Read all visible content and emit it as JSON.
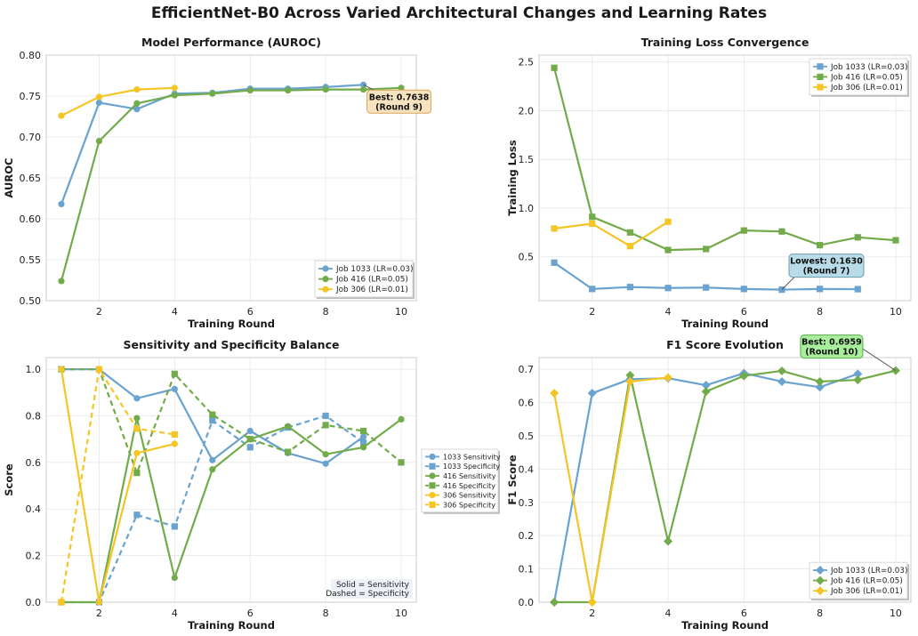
{
  "suptitle": "EfficientNet-B0 Across Varied Architectural Changes and Learning Rates",
  "colors": {
    "job1033": "#6aa2d0",
    "job416": "#72ab4a",
    "job306": "#f5c526"
  },
  "chart_data": [
    {
      "id": "auroc",
      "type": "line",
      "title": "Model Performance (AUROC)",
      "xlabel": "Training Round",
      "ylabel": "AUROC",
      "xlim": [
        0.6,
        10.4
      ],
      "ylim": [
        0.5,
        0.8
      ],
      "xticks": [
        "2",
        "4",
        "6",
        "8",
        "10"
      ],
      "xtick_values": [
        2,
        4,
        6,
        8,
        10
      ],
      "yticks": [
        "0.50",
        "0.55",
        "0.60",
        "0.65",
        "0.70",
        "0.75",
        "0.80"
      ],
      "ytick_values": [
        0.5,
        0.55,
        0.6,
        0.65,
        0.7,
        0.75,
        0.8
      ],
      "legend_position": "lower-right",
      "series": [
        {
          "name": "Job 1033 (LR=0.03)",
          "color_key": "job1033",
          "marker": "circle",
          "dashed": false,
          "x": [
            1,
            2,
            3,
            4,
            5,
            6,
            7,
            8,
            9
          ],
          "y": [
            0.618,
            0.742,
            0.734,
            0.753,
            0.754,
            0.759,
            0.759,
            0.761,
            0.7638
          ]
        },
        {
          "name": "Job 416 (LR=0.05)",
          "color_key": "job416",
          "marker": "circle",
          "dashed": false,
          "x": [
            1,
            2,
            3,
            4,
            5,
            6,
            7,
            8,
            9,
            10
          ],
          "y": [
            0.524,
            0.695,
            0.741,
            0.751,
            0.753,
            0.757,
            0.757,
            0.758,
            0.758,
            0.76
          ]
        },
        {
          "name": "Job 306 (LR=0.01)",
          "color_key": "job306",
          "marker": "circle",
          "dashed": false,
          "x": [
            1,
            2,
            3,
            4
          ],
          "y": [
            0.726,
            0.749,
            0.758,
            0.76
          ]
        }
      ],
      "annotation": {
        "line1": "Best: 0.7638",
        "line2": "(Round 9)",
        "point": [
          9,
          0.7638
        ],
        "box_color": "#f7e2c0",
        "box_border": "#d9a55a"
      }
    },
    {
      "id": "loss",
      "type": "line",
      "title": "Training Loss Convergence",
      "xlabel": "Training Round",
      "ylabel": "Training Loss",
      "xlim": [
        0.6,
        10.4
      ],
      "ylim": [
        0.05,
        2.57
      ],
      "xticks": [
        "2",
        "4",
        "6",
        "8",
        "10"
      ],
      "xtick_values": [
        2,
        4,
        6,
        8,
        10
      ],
      "yticks": [
        "0.5",
        "1.0",
        "1.5",
        "2.0",
        "2.5"
      ],
      "ytick_values": [
        0.5,
        1.0,
        1.5,
        2.0,
        2.5
      ],
      "legend_position": "top-right",
      "series": [
        {
          "name": "Job 1033 (LR=0.03)",
          "color_key": "job1033",
          "marker": "square",
          "dashed": false,
          "x": [
            1,
            2,
            3,
            4,
            5,
            6,
            7,
            8,
            9
          ],
          "y": [
            0.44,
            0.17,
            0.19,
            0.18,
            0.185,
            0.17,
            0.163,
            0.17,
            0.168
          ]
        },
        {
          "name": "Job 416 (LR=0.05)",
          "color_key": "job416",
          "marker": "square",
          "dashed": false,
          "x": [
            1,
            2,
            3,
            4,
            5,
            6,
            7,
            8,
            9,
            10
          ],
          "y": [
            2.44,
            0.91,
            0.75,
            0.57,
            0.58,
            0.77,
            0.76,
            0.62,
            0.7,
            0.67
          ]
        },
        {
          "name": "Job 306 (LR=0.01)",
          "color_key": "job306",
          "marker": "square",
          "dashed": false,
          "x": [
            1,
            2,
            3,
            4
          ],
          "y": [
            0.79,
            0.84,
            0.61,
            0.86
          ]
        }
      ],
      "annotation": {
        "line1": "Lowest: 0.1630",
        "line2": "(Round 7)",
        "point": [
          7,
          0.163
        ],
        "box_color": "#b9dce8",
        "box_border": "#6a9cb0"
      }
    },
    {
      "id": "sensspec",
      "type": "line",
      "title": "Sensitivity and Specificity Balance",
      "xlabel": "Training Round",
      "ylabel": "Score",
      "xlim": [
        0.6,
        10.4
      ],
      "ylim": [
        0.0,
        1.05
      ],
      "xticks": [
        "2",
        "4",
        "6",
        "8",
        "10"
      ],
      "xtick_values": [
        2,
        4,
        6,
        8,
        10
      ],
      "yticks": [
        "0.0",
        "0.2",
        "0.4",
        "0.6",
        "0.8",
        "1.0"
      ],
      "ytick_values": [
        0,
        0.2,
        0.4,
        0.6,
        0.8,
        1.0
      ],
      "legend_position": "outside-right",
      "series": [
        {
          "name": "1033 Sensitivity",
          "color_key": "job1033",
          "marker": "circle",
          "dashed": false,
          "x": [
            1,
            2,
            3,
            4,
            5,
            6,
            7,
            8,
            9
          ],
          "y": [
            1.0,
            1.0,
            0.875,
            0.915,
            0.61,
            0.735,
            0.64,
            0.595,
            0.71
          ]
        },
        {
          "name": "1033 Specificity",
          "color_key": "job1033",
          "marker": "square",
          "dashed": true,
          "x": [
            1,
            2,
            3,
            4,
            5,
            6,
            7,
            8,
            9
          ],
          "y": [
            0.0,
            0.0,
            0.375,
            0.325,
            0.78,
            0.665,
            0.75,
            0.8,
            0.685
          ]
        },
        {
          "name": "416 Sensitivity",
          "color_key": "job416",
          "marker": "circle",
          "dashed": false,
          "x": [
            1,
            2,
            3,
            4,
            5,
            6,
            7,
            8,
            9,
            10
          ],
          "y": [
            0.0,
            0.0,
            0.79,
            0.105,
            0.57,
            0.7,
            0.755,
            0.635,
            0.665,
            0.785
          ]
        },
        {
          "name": "416 Specificity",
          "color_key": "job416",
          "marker": "square",
          "dashed": true,
          "x": [
            1,
            2,
            3,
            4,
            5,
            6,
            7,
            8,
            9,
            10
          ],
          "y": [
            1.0,
            1.0,
            0.555,
            0.98,
            0.805,
            0.7,
            0.645,
            0.76,
            0.735,
            0.6
          ]
        },
        {
          "name": "306 Sensitivity",
          "color_key": "job306",
          "marker": "circle",
          "dashed": false,
          "x": [
            1,
            2,
            3,
            4
          ],
          "y": [
            1.0,
            0.0,
            0.64,
            0.68
          ]
        },
        {
          "name": "306 Specificity",
          "color_key": "job306",
          "marker": "square",
          "dashed": true,
          "x": [
            1,
            2,
            3,
            4
          ],
          "y": [
            0.0,
            1.0,
            0.745,
            0.72
          ]
        }
      ],
      "note_line1": "Solid = Sensitivity",
      "note_line2": "Dashed = Specificity"
    },
    {
      "id": "f1",
      "type": "line",
      "title": "F1 Score Evolution",
      "xlabel": "Training Round",
      "ylabel": "F1 Score",
      "xlim": [
        0.6,
        10.4
      ],
      "ylim": [
        0.0,
        0.735
      ],
      "xticks": [
        "2",
        "4",
        "6",
        "8",
        "10"
      ],
      "xtick_values": [
        2,
        4,
        6,
        8,
        10
      ],
      "yticks": [
        "0.0",
        "0.1",
        "0.2",
        "0.3",
        "0.4",
        "0.5",
        "0.6",
        "0.7"
      ],
      "ytick_values": [
        0,
        0.1,
        0.2,
        0.3,
        0.4,
        0.5,
        0.6,
        0.7
      ],
      "legend_position": "lower-right",
      "series": [
        {
          "name": "Job 1033 (LR=0.03)",
          "color_key": "job1033",
          "marker": "diamond",
          "dashed": false,
          "x": [
            1,
            2,
            3,
            4,
            5,
            6,
            7,
            8,
            9
          ],
          "y": [
            0.0,
            0.628,
            0.67,
            0.673,
            0.652,
            0.688,
            0.663,
            0.646,
            0.686
          ]
        },
        {
          "name": "Job 416 (LR=0.05)",
          "color_key": "job416",
          "marker": "diamond",
          "dashed": false,
          "x": [
            1,
            2,
            3,
            4,
            5,
            6,
            7,
            8,
            9,
            10
          ],
          "y": [
            0.0,
            0.0,
            0.682,
            0.183,
            0.633,
            0.68,
            0.695,
            0.663,
            0.668,
            0.6959
          ]
        },
        {
          "name": "Job 306 (LR=0.01)",
          "color_key": "job306",
          "marker": "diamond",
          "dashed": false,
          "x": [
            1,
            2,
            3,
            4
          ],
          "y": [
            0.628,
            0.0,
            0.663,
            0.675
          ]
        }
      ],
      "annotation": {
        "line1": "Best: 0.6959",
        "line2": "(Round 10)",
        "point": [
          10,
          0.6959
        ],
        "box_color": "#a8ee9c",
        "box_border": "#5aa84c"
      }
    }
  ]
}
